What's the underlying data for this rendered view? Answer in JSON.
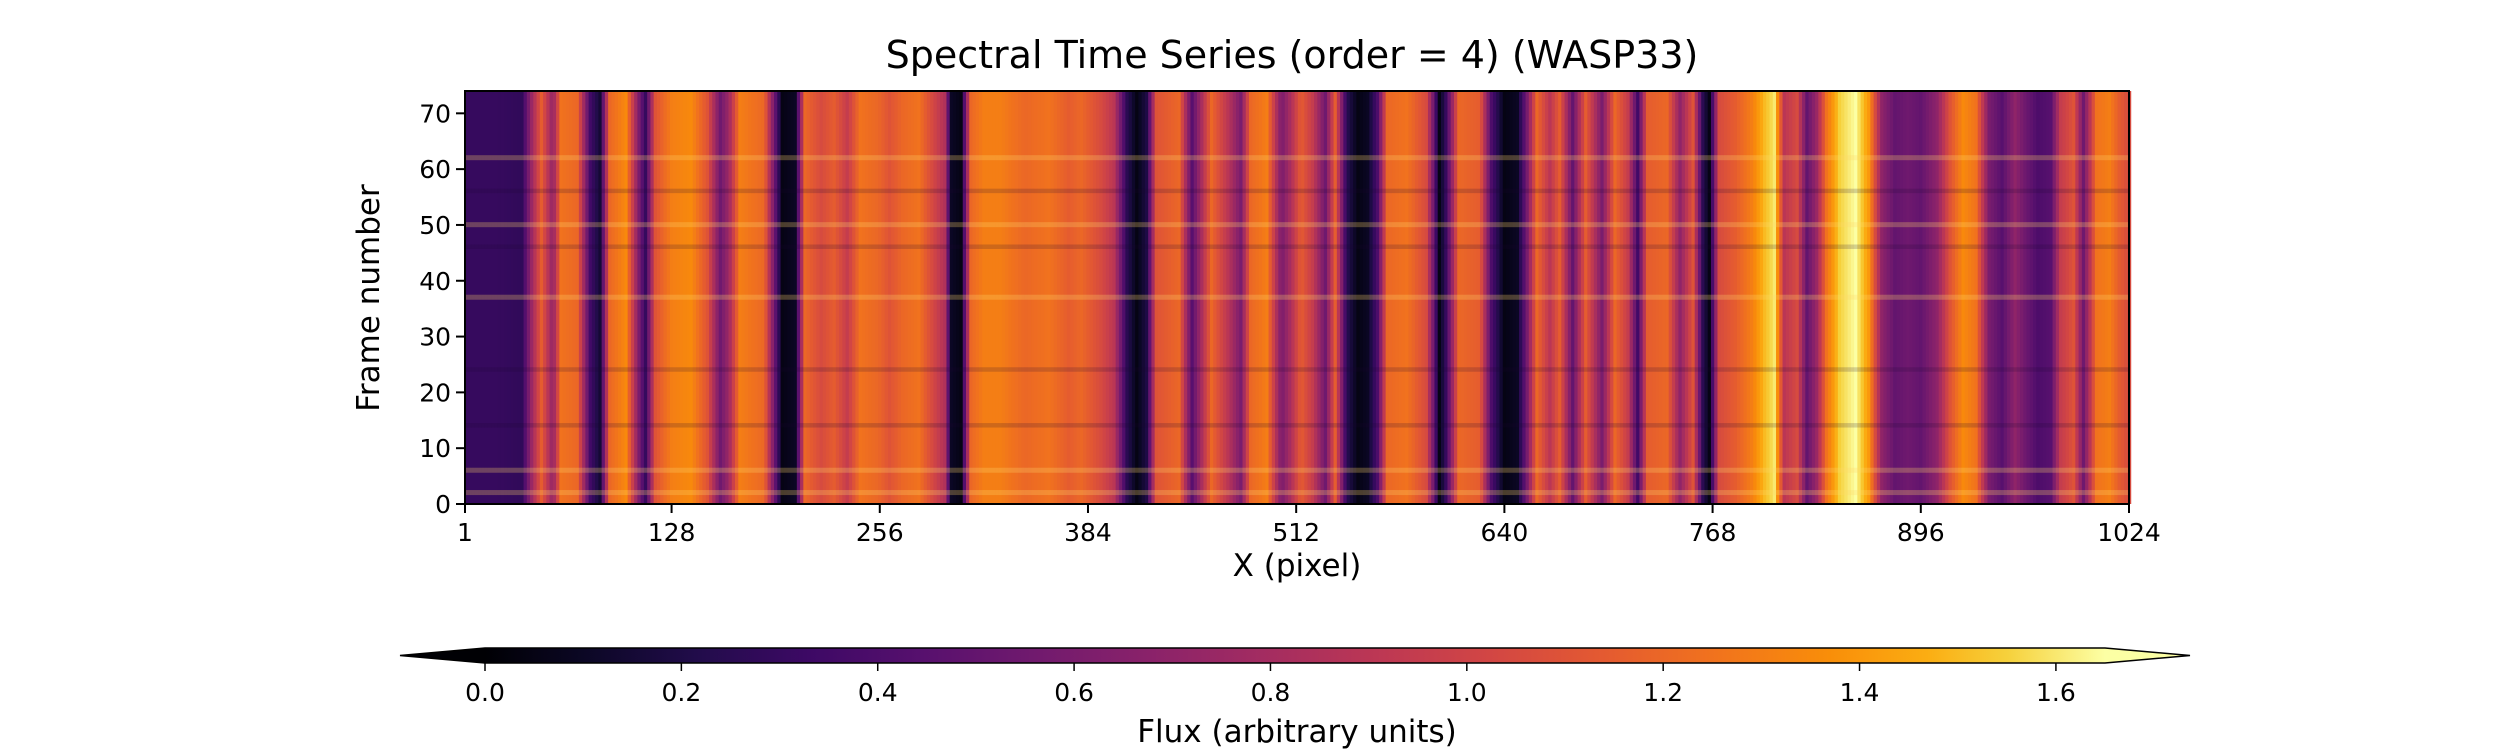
{
  "chart_data": {
    "type": "heatmap",
    "title": "Spectral Time Series (order = 4) (WASP33)",
    "xlabel": "X (pixel)",
    "ylabel": "Frame number",
    "xlim": [
      1,
      1024
    ],
    "ylim": [
      0,
      74
    ],
    "x_ticks": [
      1,
      128,
      256,
      384,
      512,
      640,
      768,
      896,
      1024
    ],
    "y_ticks": [
      0,
      10,
      20,
      30,
      40,
      50,
      60,
      70
    ],
    "colormap": "inferno",
    "colorbar": {
      "label": "Flux (arbitrary units)",
      "range": [
        0.0,
        1.65
      ],
      "ticks": [
        0.0,
        0.2,
        0.4,
        0.6,
        0.8,
        1.0,
        1.2,
        1.4,
        1.6
      ],
      "tick_labels": [
        "0.0",
        "0.2",
        "0.4",
        "0.6",
        "0.8",
        "1.0",
        "1.2",
        "1.4",
        "1.6"
      ],
      "extend": "both",
      "orientation": "horizontal",
      "location": "bottom"
    },
    "spectral_profile": [
      [
        1,
        0.3
      ],
      [
        20,
        0.3
      ],
      [
        36,
        0.28
      ],
      [
        42,
        0.75
      ],
      [
        48,
        1.15
      ],
      [
        55,
        0.7
      ],
      [
        60,
        1.25
      ],
      [
        70,
        1.2
      ],
      [
        78,
        0.35
      ],
      [
        84,
        0.15
      ],
      [
        90,
        1.2
      ],
      [
        100,
        1.35
      ],
      [
        108,
        0.6
      ],
      [
        112,
        0.3
      ],
      [
        118,
        1.1
      ],
      [
        128,
        1.3
      ],
      [
        140,
        1.35
      ],
      [
        150,
        1.1
      ],
      [
        158,
        0.55
      ],
      [
        163,
        0.75
      ],
      [
        170,
        1.3
      ],
      [
        185,
        1.2
      ],
      [
        196,
        0.05
      ],
      [
        204,
        0.1
      ],
      [
        210,
        1.2
      ],
      [
        220,
        1.05
      ],
      [
        228,
        1.15
      ],
      [
        236,
        0.95
      ],
      [
        244,
        1.25
      ],
      [
        255,
        1.2
      ],
      [
        262,
        1.1
      ],
      [
        270,
        1.2
      ],
      [
        280,
        1.25
      ],
      [
        296,
        0.85
      ],
      [
        300,
        0.1
      ],
      [
        306,
        0.05
      ],
      [
        312,
        1.2
      ],
      [
        320,
        1.3
      ],
      [
        330,
        1.3
      ],
      [
        345,
        1.2
      ],
      [
        360,
        1.25
      ],
      [
        372,
        1.15
      ],
      [
        380,
        1.2
      ],
      [
        392,
        1.05
      ],
      [
        400,
        0.9
      ],
      [
        408,
        0.25
      ],
      [
        414,
        0.05
      ],
      [
        420,
        0.2
      ],
      [
        426,
        1.1
      ],
      [
        440,
        1.2
      ],
      [
        448,
        0.45
      ],
      [
        452,
        0.7
      ],
      [
        460,
        1.2
      ],
      [
        470,
        0.9
      ],
      [
        478,
        0.6
      ],
      [
        484,
        1.2
      ],
      [
        494,
        1.3
      ],
      [
        503,
        0.6
      ],
      [
        508,
        0.8
      ],
      [
        515,
        1.15
      ],
      [
        522,
        0.95
      ],
      [
        530,
        0.55
      ],
      [
        536,
        1.15
      ],
      [
        543,
        0.25
      ],
      [
        550,
        0.05
      ],
      [
        556,
        0.1
      ],
      [
        562,
        0.4
      ],
      [
        568,
        1.2
      ],
      [
        580,
        1.25
      ],
      [
        592,
        1.05
      ],
      [
        596,
        0.6
      ],
      [
        600,
        0.05
      ],
      [
        604,
        0.3
      ],
      [
        612,
        1.2
      ],
      [
        625,
        1.15
      ],
      [
        632,
        0.4
      ],
      [
        640,
        0.05
      ],
      [
        648,
        0.1
      ],
      [
        654,
        0.6
      ],
      [
        660,
        1.2
      ],
      [
        668,
        0.9
      ],
      [
        674,
        1.15
      ],
      [
        682,
        0.5
      ],
      [
        690,
        1.15
      ],
      [
        700,
        0.6
      ],
      [
        708,
        1.2
      ],
      [
        716,
        0.95
      ],
      [
        722,
        0.35
      ],
      [
        728,
        1.15
      ],
      [
        740,
        1.2
      ],
      [
        748,
        0.7
      ],
      [
        756,
        1.1
      ],
      [
        762,
        0.25
      ],
      [
        766,
        0.05
      ],
      [
        772,
        1.05
      ],
      [
        782,
        1.15
      ],
      [
        792,
        1.3
      ],
      [
        800,
        1.5
      ],
      [
        806,
        1.6
      ],
      [
        812,
        0.9
      ],
      [
        820,
        1.05
      ],
      [
        826,
        0.5
      ],
      [
        832,
        0.75
      ],
      [
        838,
        1.25
      ],
      [
        846,
        1.55
      ],
      [
        856,
        1.65
      ],
      [
        864,
        1.4
      ],
      [
        872,
        0.7
      ],
      [
        880,
        0.5
      ],
      [
        888,
        0.55
      ],
      [
        896,
        0.5
      ],
      [
        906,
        0.7
      ],
      [
        914,
        1.1
      ],
      [
        922,
        1.35
      ],
      [
        930,
        1.25
      ],
      [
        938,
        0.6
      ],
      [
        946,
        0.45
      ],
      [
        954,
        0.7
      ],
      [
        960,
        0.55
      ],
      [
        968,
        0.4
      ],
      [
        976,
        0.45
      ],
      [
        982,
        0.95
      ],
      [
        990,
        1.1
      ],
      [
        996,
        0.55
      ],
      [
        1004,
        1.25
      ],
      [
        1012,
        1.3
      ],
      [
        1018,
        1.15
      ],
      [
        1024,
        1.05
      ]
    ],
    "frame_bright_bands": [
      2,
      6,
      37,
      50,
      62
    ],
    "frame_dark_bands": [
      14,
      24,
      46,
      56
    ]
  }
}
